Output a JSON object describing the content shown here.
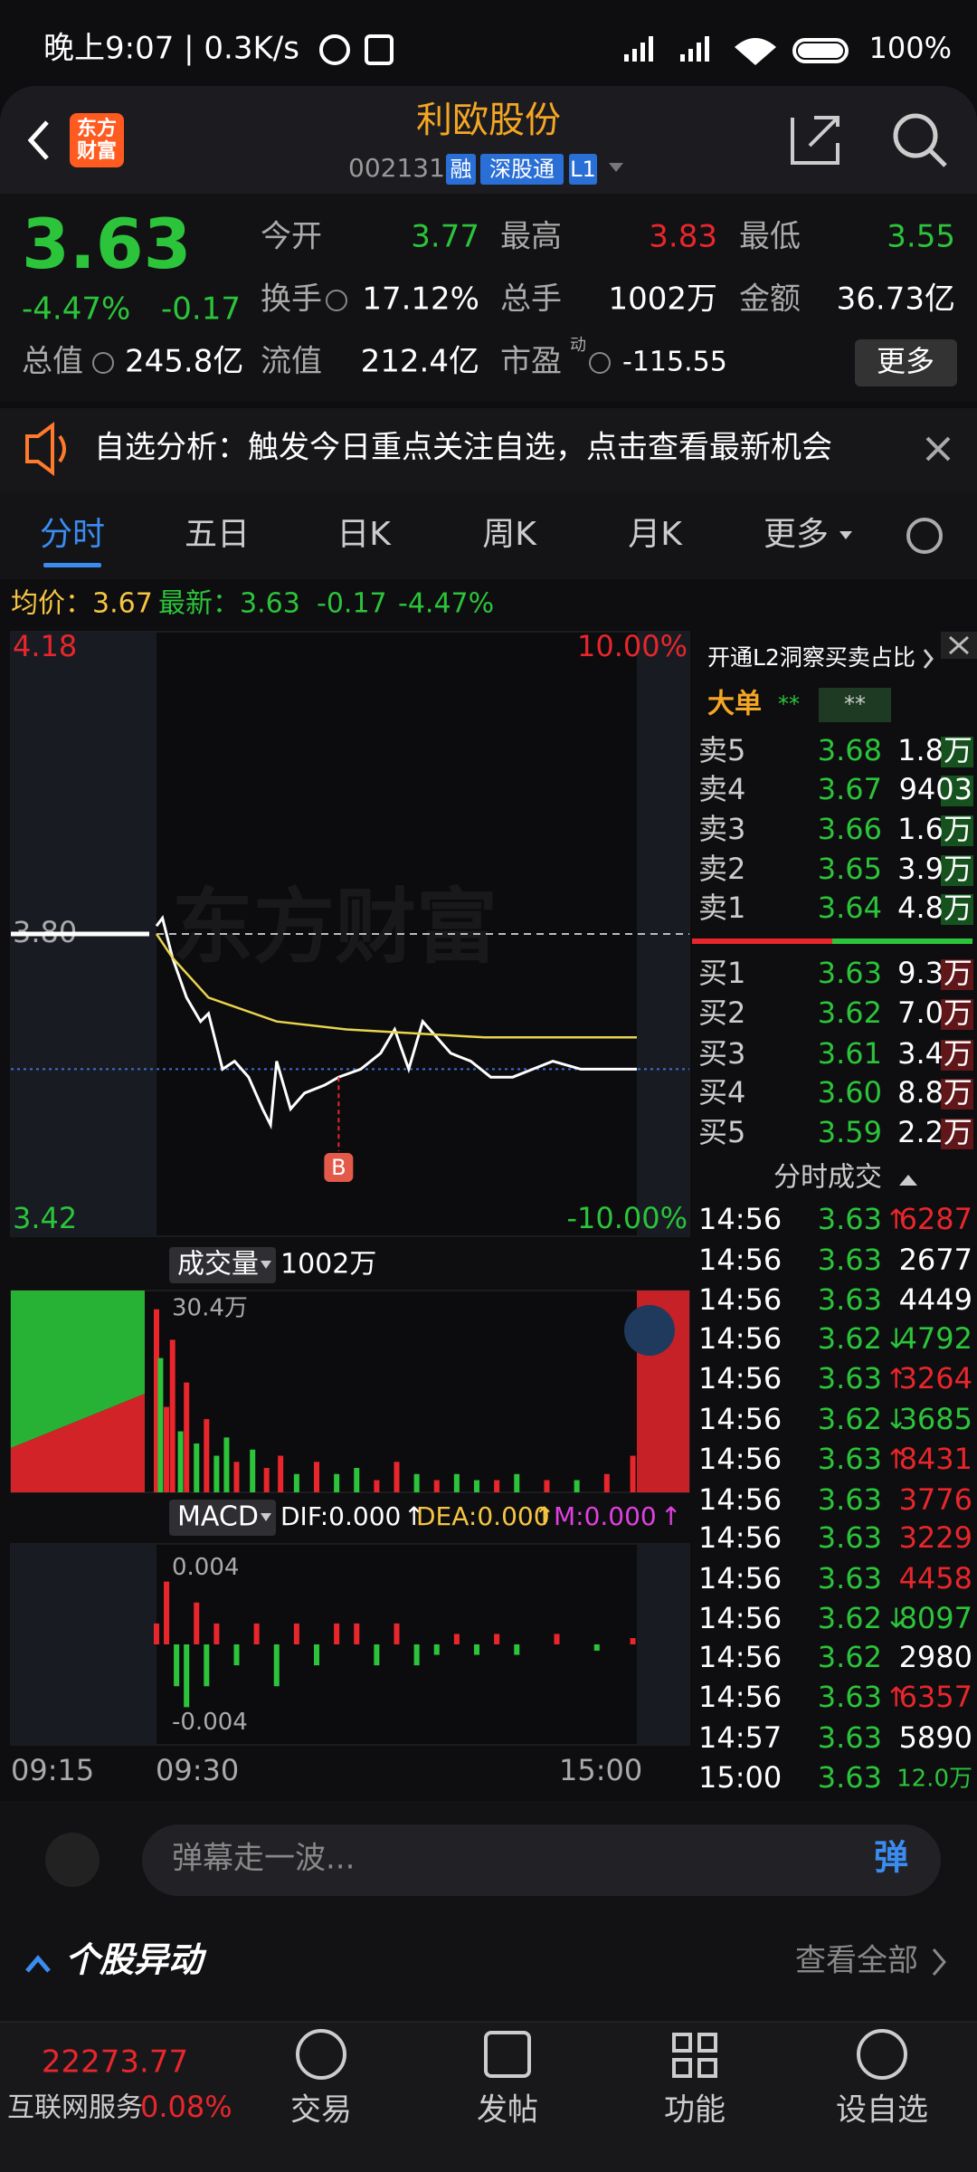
{
  "status_bar": {
    "time": "晚上9:07 | 0.3K/s",
    "battery": "100%"
  },
  "header": {
    "logo": [
      "东方",
      "财富"
    ],
    "title": "利欧股份",
    "code": "002131",
    "badges": [
      "融",
      "深股通",
      "L1"
    ]
  },
  "quote": {
    "price": "3.63",
    "change_pct": "-4.47%",
    "change": "-0.17",
    "pe_mark": "动",
    "more": "更多",
    "fields": [
      {
        "label": "今开",
        "value": "3.77"
      },
      {
        "label": "最高",
        "value": "3.83"
      },
      {
        "label": "最低",
        "value": "3.55"
      },
      {
        "label": "换手",
        "value": "17.12%"
      },
      {
        "label": "总手",
        "value": "1002万"
      },
      {
        "label": "金额",
        "value": "36.73亿"
      },
      {
        "label": "总值",
        "value": "245.8亿"
      },
      {
        "label": "流值",
        "value": "212.4亿"
      },
      {
        "label": "市盈",
        "value": "-115.55"
      }
    ]
  },
  "banner": "自选分析：触发今日重点关注自选，点击查看最新机会",
  "tabs": [
    "分时",
    "五日",
    "日K",
    "周K",
    "月K",
    "更多"
  ],
  "info_line": [
    "均价：3.67",
    "最新：3.63",
    "-0.17",
    "-4.47%"
  ],
  "chart_data": [
    {
      "type": "line",
      "watermark": "东方财富",
      "annotation": "B",
      "ylim": [
        3.42,
        4.18
      ],
      "yticks": [
        4.18,
        {
          "value": 3.8,
          "label": "3.80"
        },
        3.42
      ],
      "y2lim": [
        -10,
        10
      ],
      "y2ticks": [
        {
          "value": 10,
          "label": "10.00%"
        },
        {
          "value": -10,
          "label": "-10.00%"
        }
      ],
      "series": [
        {
          "color": "#ffffff",
          "x": [
            0,
            3,
            8,
            15,
            22,
            26,
            33,
            39,
            46,
            53,
            57,
            60,
            67,
            74,
            84,
            91,
            102,
            112,
            119,
            126,
            133,
            140,
            147,
            157,
            167,
            178,
            188,
            198,
            212,
            226,
            237,
            240
          ],
          "values": [
            3.81,
            3.82,
            3.77,
            3.72,
            3.69,
            3.7,
            3.63,
            3.64,
            3.62,
            3.58,
            3.56,
            3.64,
            3.58,
            3.6,
            3.61,
            3.62,
            3.63,
            3.65,
            3.68,
            3.63,
            3.69,
            3.67,
            3.65,
            3.64,
            3.62,
            3.62,
            3.63,
            3.64,
            3.63,
            3.63,
            3.63,
            3.63
          ]
        },
        {
          "color": "#e8d44d",
          "x": [
            0,
            8,
            26,
            60,
            95,
            164,
            240
          ],
          "values": [
            3.8,
            3.77,
            3.72,
            3.69,
            3.68,
            3.67,
            3.67
          ]
        }
      ]
    },
    {
      "type": "bar",
      "title": "成交量",
      "total": "1002万",
      "ylim": [
        0,
        30.4
      ],
      "yticks": [
        {
          "value": 30.4,
          "label": "30.4万"
        }
      ],
      "x": [
        0,
        2,
        5,
        8,
        12,
        15,
        20,
        25,
        30,
        35,
        40,
        48,
        55,
        62,
        70,
        80,
        90,
        100,
        110,
        120,
        130,
        140,
        150,
        160,
        170,
        180,
        195,
        210,
        225,
        238
      ],
      "values": [
        30,
        22,
        14,
        25,
        10,
        18,
        8,
        12,
        6,
        9,
        5,
        7,
        4,
        6,
        3,
        5,
        3,
        4,
        2,
        5,
        3,
        2,
        3,
        2,
        2,
        3,
        2,
        2,
        3,
        6
      ],
      "colors": [
        "#e8262b",
        "#2bc43a",
        "#e8262b",
        "#e8262b",
        "#2bc43a",
        "#e8262b",
        "#2bc43a",
        "#e8262b",
        "#2bc43a",
        "#2bc43a",
        "#e8262b",
        "#2bc43a",
        "#e8262b",
        "#e8262b",
        "#2bc43a",
        "#e8262b",
        "#2bc43a",
        "#2bc43a",
        "#e8262b",
        "#e8262b",
        "#2bc43a",
        "#e8262b",
        "#2bc43a",
        "#2bc43a",
        "#e8262b",
        "#2bc43a",
        "#e8262b",
        "#2bc43a",
        "#e8262b",
        "#e8262b"
      ]
    },
    {
      "type": "bar",
      "title": "MACD",
      "indicators": [
        "DIF:0.000",
        "DEA:0.000",
        "M:0.000"
      ],
      "arrow": "↑",
      "ylim": [
        -0.0048,
        0.0048
      ],
      "yticks": [
        0.004,
        -0.004
      ],
      "up_color": "#e8262b",
      "down_color": "#2bc43a",
      "x": [
        0,
        5,
        10,
        15,
        20,
        25,
        30,
        40,
        50,
        60,
        70,
        80,
        90,
        100,
        110,
        120,
        130,
        140,
        150,
        160,
        170,
        180,
        200,
        220,
        238
      ],
      "values": [
        0.001,
        0.003,
        -0.002,
        -0.003,
        0.002,
        -0.002,
        0.001,
        -0.001,
        0.001,
        -0.002,
        0.001,
        -0.001,
        0.001,
        0.001,
        -0.001,
        0.001,
        -0.001,
        -0.0005,
        0.0005,
        -0.0005,
        0.0005,
        -0.0005,
        0.0005,
        -0.0003,
        0.0003
      ]
    }
  ],
  "time_labels": [
    "09:15",
    "09:30",
    "15:00"
  ],
  "order_book": {
    "notice": "开通L2洞察买卖占比",
    "big_order": "大单",
    "stars": [
      "**",
      "**"
    ],
    "asks": [
      {
        "label": "卖5",
        "price": "3.68",
        "volume": "1.8万"
      },
      {
        "label": "卖4",
        "price": "3.67",
        "volume": "9403"
      },
      {
        "label": "卖3",
        "price": "3.66",
        "volume": "1.6万"
      },
      {
        "label": "卖2",
        "price": "3.65",
        "volume": "3.9万"
      },
      {
        "label": "卖1",
        "price": "3.64",
        "volume": "4.8万"
      }
    ],
    "bids": [
      {
        "label": "买1",
        "price": "3.63",
        "volume": "9.3万"
      },
      {
        "label": "买2",
        "price": "3.62",
        "volume": "7.0万"
      },
      {
        "label": "买3",
        "price": "3.61",
        "volume": "3.4万"
      },
      {
        "label": "买4",
        "price": "3.60",
        "volume": "8.8万"
      },
      {
        "label": "买5",
        "price": "3.59",
        "volume": "2.2万"
      }
    ]
  },
  "trades": {
    "title": "分时成交",
    "rows": [
      {
        "time": "14:56",
        "price": "3.63",
        "arrow": "↑",
        "volume": "6287",
        "color": "#e8262b"
      },
      {
        "time": "14:56",
        "price": "3.63",
        "volume": "2677",
        "color": "#ffffff"
      },
      {
        "time": "14:56",
        "price": "3.63",
        "volume": "4449",
        "color": "#ffffff"
      },
      {
        "time": "14:56",
        "price": "3.62",
        "arrow": "↓",
        "volume": "4792",
        "color": "#2bc43a"
      },
      {
        "time": "14:56",
        "price": "3.63",
        "arrow": "↑",
        "volume": "3264",
        "color": "#e8262b"
      },
      {
        "time": "14:56",
        "price": "3.62",
        "arrow": "↓",
        "volume": "3685",
        "color": "#2bc43a"
      },
      {
        "time": "14:56",
        "price": "3.63",
        "arrow": "↑",
        "volume": "8431",
        "color": "#e8262b"
      },
      {
        "time": "14:56",
        "price": "3.63",
        "volume": "3776",
        "color": "#e8262b"
      },
      {
        "time": "14:56",
        "price": "3.63",
        "volume": "3229",
        "color": "#e8262b"
      },
      {
        "time": "14:56",
        "price": "3.63",
        "volume": "4458",
        "color": "#e8262b"
      },
      {
        "time": "14:56",
        "price": "3.62",
        "arrow": "↓",
        "volume": "8097",
        "color": "#2bc43a"
      },
      {
        "time": "14:56",
        "price": "3.62",
        "volume": "2980",
        "color": "#ffffff"
      },
      {
        "time": "14:56",
        "price": "3.63",
        "arrow": "↑",
        "volume": "6357",
        "color": "#e8262b"
      },
      {
        "time": "14:57",
        "price": "3.63",
        "volume": "5890",
        "color": "#ffffff"
      },
      {
        "time": "15:00",
        "price": "3.63",
        "volume": "12.0万",
        "color": "#2bc43a"
      }
    ]
  },
  "comment": {
    "placeholder": "弹幕走一波...",
    "button": "弹"
  },
  "movers": {
    "title": "个股异动",
    "link": "查看全部"
  },
  "bottom_nav": {
    "index_value": "22273.77",
    "index_name": "互联网服务",
    "index_change": "0.08%",
    "items": [
      "交易",
      "发帖",
      "功能",
      "设自选"
    ]
  }
}
